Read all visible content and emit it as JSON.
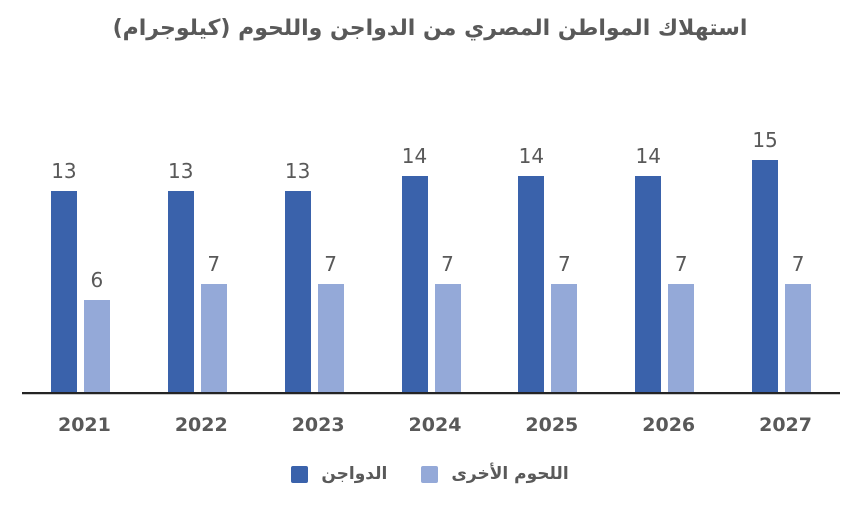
{
  "page": {
    "background": "#ffffff",
    "text_color": "#595959",
    "axis_line_color": "#242424"
  },
  "chart_data": {
    "type": "bar",
    "title": "استهلاك المواطن المصري من الدواجن واللحوم (كيلوجرام)",
    "categories": [
      "2021",
      "2022",
      "2023",
      "2024",
      "2025",
      "2026",
      "2027"
    ],
    "series": [
      {
        "name": "الدواجن",
        "key": "poultry",
        "color": "#3A62AB",
        "values": [
          13,
          13,
          13,
          14,
          14,
          14,
          15
        ]
      },
      {
        "name": "اللحوم الأخرى",
        "key": "other-meats",
        "color": "#94A9D8",
        "values": [
          6,
          7,
          7,
          7,
          7,
          7,
          7
        ]
      }
    ],
    "value_labels_shown": true,
    "gridlines": false,
    "y_axis_shown": false,
    "legend_position": "bottom",
    "text_direction": "rtl",
    "ylim": [
      0,
      16
    ]
  }
}
